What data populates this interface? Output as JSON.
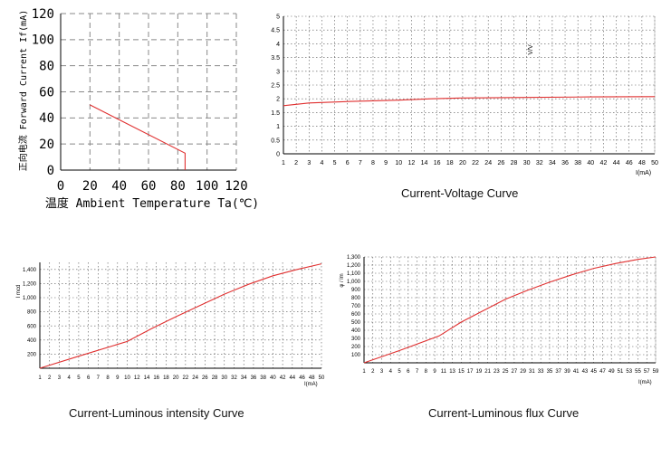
{
  "colors": {
    "curve": "#e03030",
    "grid": "#888888",
    "axis": "#000000",
    "text": "#000000"
  },
  "chart_data": [
    {
      "type": "line",
      "title": "",
      "xlabel": "温度 Ambient Temperature Ta(℃)",
      "ylabel": "正向电流 Forward Current If(mA)",
      "xlim": [
        0,
        120
      ],
      "ylim": [
        0,
        120
      ],
      "x_ticks": [
        "0",
        "20",
        "40",
        "60",
        "80",
        "100",
        "120"
      ],
      "y_ticks": [
        "0",
        "20",
        "40",
        "60",
        "80",
        "100",
        "120"
      ],
      "grid": "dashed",
      "series": [
        {
          "x": [
            20,
            85,
            85
          ],
          "y": [
            50,
            13,
            0
          ]
        }
      ]
    },
    {
      "type": "line",
      "caption": "Current-Voltage Curve",
      "xlabel": "I(mA)",
      "ylabel": "V/V",
      "xlim": [
        1,
        50
      ],
      "ylim": [
        0,
        5
      ],
      "x_ticks": [
        "1",
        "2",
        "3",
        "4",
        "5",
        "6",
        "7",
        "8",
        "9",
        "10",
        "12",
        "14",
        "16",
        "18",
        "20",
        "22",
        "24",
        "26",
        "28",
        "30",
        "32",
        "34",
        "36",
        "38",
        "40",
        "42",
        "44",
        "46",
        "48",
        "50"
      ],
      "y_ticks": [
        "0",
        "0.5",
        "1",
        "1.5",
        "2",
        "2.5",
        "3",
        "3.5",
        "4",
        "4.5",
        "5"
      ],
      "grid": "dotted",
      "series": [
        {
          "x": [
            1,
            3,
            6,
            10,
            15,
            20,
            30,
            40,
            50
          ],
          "y": [
            1.75,
            1.85,
            1.9,
            1.95,
            2.0,
            2.03,
            2.05,
            2.07,
            2.08
          ]
        }
      ]
    },
    {
      "type": "line",
      "caption": "Current-Luminous intensity Curve",
      "xlabel": "I(mA)",
      "ylabel": "I mcd",
      "xlim": [
        1,
        50
      ],
      "ylim": [
        0,
        1500
      ],
      "x_ticks": [
        "1",
        "2",
        "3",
        "4",
        "5",
        "6",
        "7",
        "8",
        "9",
        "10",
        "12",
        "14",
        "16",
        "18",
        "20",
        "22",
        "24",
        "26",
        "28",
        "30",
        "32",
        "34",
        "36",
        "38",
        "40",
        "42",
        "44",
        "46",
        "48",
        "50"
      ],
      "y_ticks": [
        "200",
        "400",
        "600",
        "800",
        "1,000",
        "1,200",
        "1,400"
      ],
      "grid": "dotted",
      "series": [
        {
          "x": [
            1,
            5,
            10,
            15,
            20,
            25,
            30,
            35,
            40,
            45,
            50
          ],
          "y": [
            0,
            170,
            380,
            560,
            730,
            890,
            1050,
            1190,
            1310,
            1400,
            1480
          ]
        }
      ]
    },
    {
      "type": "line",
      "caption": "Current-Luminous flux Curve",
      "xlabel": "I(mA)",
      "ylabel": "φ / lm",
      "xlim": [
        1,
        59
      ],
      "ylim": [
        0,
        1300
      ],
      "x_ticks": [
        "1",
        "2",
        "3",
        "4",
        "5",
        "6",
        "7",
        "8",
        "9",
        "11",
        "13",
        "15",
        "17",
        "19",
        "21",
        "23",
        "25",
        "27",
        "29",
        "31",
        "33",
        "35",
        "37",
        "39",
        "41",
        "43",
        "45",
        "47",
        "49",
        "51",
        "53",
        "55",
        "57",
        "59"
      ],
      "y_ticks": [
        "100",
        "200",
        "300",
        "400",
        "500",
        "600",
        "700",
        "800",
        "900",
        "1,000",
        "1,100",
        "1,200",
        "1,300"
      ],
      "grid": "dotted",
      "series": [
        {
          "x": [
            1,
            5,
            10,
            15,
            20,
            25,
            30,
            35,
            40,
            45,
            50,
            55,
            59
          ],
          "y": [
            0,
            150,
            330,
            500,
            640,
            780,
            890,
            990,
            1080,
            1160,
            1220,
            1270,
            1300
          ]
        }
      ]
    }
  ]
}
